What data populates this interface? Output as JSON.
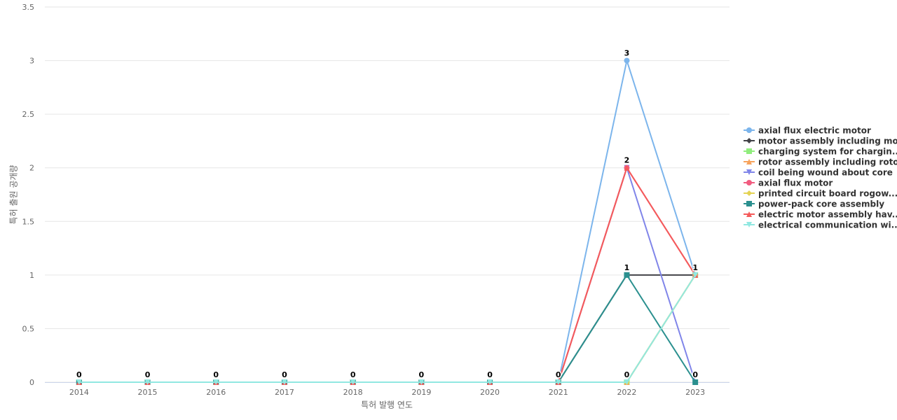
{
  "chart_data": {
    "type": "line",
    "x_axis_title": "특허 발행 연도",
    "y_axis_title": "특허 출원 공개량",
    "categories": [
      "2014",
      "2015",
      "2016",
      "2017",
      "2018",
      "2019",
      "2020",
      "2021",
      "2022",
      "2023"
    ],
    "ylim": [
      0,
      3.5
    ],
    "yticks": [
      0,
      0.5,
      1,
      1.5,
      2,
      2.5,
      3,
      3.5
    ],
    "grid": true,
    "legend_position": "right",
    "data_labels": true,
    "series": [
      {
        "name": "axial flux electric motor",
        "color": "#7cb5ec",
        "marker": "circle",
        "values": [
          0,
          0,
          0,
          0,
          0,
          0,
          0,
          0,
          3,
          1
        ]
      },
      {
        "name": "motor assembly including mo...",
        "color": "#434348",
        "marker": "diamond",
        "values": [
          0,
          0,
          0,
          0,
          0,
          0,
          0,
          0,
          1,
          1
        ]
      },
      {
        "name": "charging system for chargin...",
        "color": "#90ed7d",
        "marker": "square",
        "values": [
          0,
          0,
          0,
          0,
          0,
          0,
          0,
          0,
          0,
          1
        ]
      },
      {
        "name": "rotor assembly including rotor",
        "color": "#f7a35c",
        "marker": "triangle",
        "values": [
          0,
          0,
          0,
          0,
          0,
          0,
          0,
          0,
          0,
          1
        ]
      },
      {
        "name": "coil being wound about core",
        "color": "#8085e9",
        "marker": "triangle-down",
        "values": [
          0,
          0,
          0,
          0,
          0,
          0,
          0,
          0,
          2,
          0
        ]
      },
      {
        "name": "axial flux motor",
        "color": "#f15c80",
        "marker": "circle",
        "values": [
          0,
          0,
          0,
          0,
          0,
          0,
          0,
          0,
          2,
          1
        ]
      },
      {
        "name": "printed circuit board rogow...",
        "color": "#e4d354",
        "marker": "diamond",
        "values": [
          0,
          0,
          0,
          0,
          0,
          0,
          0,
          0,
          0,
          1
        ]
      },
      {
        "name": "power-pack core assembly",
        "color": "#2b908f",
        "marker": "square",
        "values": [
          0,
          0,
          0,
          0,
          0,
          0,
          0,
          0,
          1,
          0
        ]
      },
      {
        "name": "electric motor assembly hav...",
        "color": "#f45b5b",
        "marker": "triangle",
        "values": [
          0,
          0,
          0,
          0,
          0,
          0,
          0,
          0,
          2,
          1
        ]
      },
      {
        "name": "electrical communication wi...",
        "color": "#91e8e1",
        "marker": "triangle-down",
        "values": [
          0,
          0,
          0,
          0,
          0,
          0,
          0,
          0,
          0,
          1
        ]
      }
    ]
  }
}
